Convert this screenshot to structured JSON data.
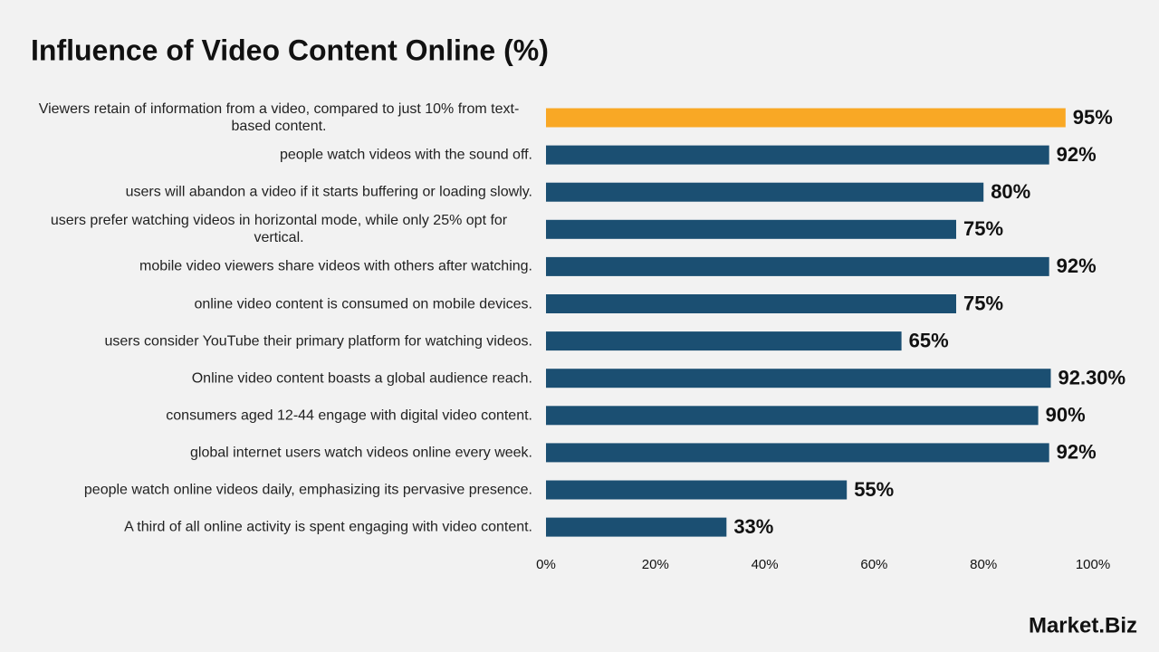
{
  "chart_data": {
    "type": "bar",
    "orientation": "horizontal",
    "title": "Influence of Video Content Online (%)",
    "categories": [
      "Viewers retain  of information from a video, compared to just 10% from text-based content.",
      "people watch videos with the sound off.",
      "users will abandon a video if it starts buffering or loading slowly.",
      "users prefer watching videos in horizontal mode, while only 25% opt for vertical.",
      "mobile video viewers share videos with others after watching.",
      "online video content is consumed on mobile devices.",
      "users consider YouTube their primary platform for watching videos.",
      "Online video content boasts a global audience reach.",
      "consumers aged 12-44 engage with digital video content.",
      "global internet users watch videos online every week.",
      "people watch online videos daily, emphasizing its pervasive presence.",
      "A third of all online activity is spent engaging with video content."
    ],
    "values": [
      95,
      92,
      80,
      75,
      92,
      75,
      65,
      92.3,
      90,
      92,
      55,
      33
    ],
    "value_labels": [
      "95%",
      "92%",
      "80%",
      "75%",
      "92%",
      "75%",
      "65%",
      "92.30%",
      "90%",
      "92%",
      "55%",
      "33%"
    ],
    "colors": [
      "#f9a825",
      "#1b4f72",
      "#1b4f72",
      "#1b4f72",
      "#1b4f72",
      "#1b4f72",
      "#1b4f72",
      "#1b4f72",
      "#1b4f72",
      "#1b4f72",
      "#1b4f72",
      "#1b4f72"
    ],
    "xlim": [
      0,
      100
    ],
    "xticks": [
      {
        "value": 0,
        "label": "0%"
      },
      {
        "value": 20,
        "label": "20%"
      },
      {
        "value": 40,
        "label": "40%"
      },
      {
        "value": 60,
        "label": "60%"
      },
      {
        "value": 80,
        "label": "80%"
      },
      {
        "value": 100,
        "label": "100%"
      }
    ],
    "grid": false
  },
  "logo": "Market.Biz"
}
